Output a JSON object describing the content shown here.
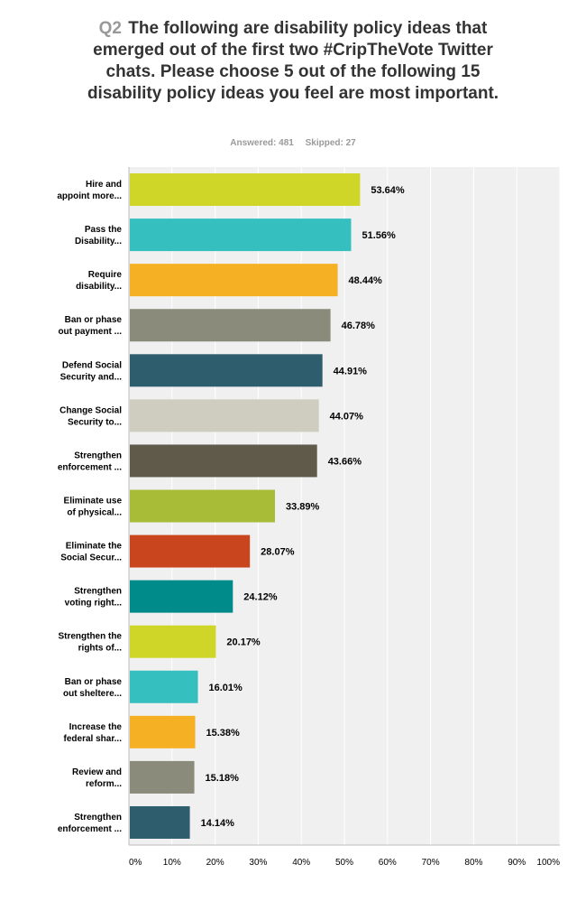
{
  "header": {
    "question_number": "Q2",
    "question_text": "The following are disability policy ideas that emerged out of the first two #CripTheVote Twitter chats. Please choose 5 out of the following 15 disability policy ideas you feel are most important.",
    "answered": "Answered: 481",
    "skipped": "Skipped: 27"
  },
  "chart_data": {
    "type": "bar",
    "orientation": "horizontal",
    "categories": [
      [
        "Hire and",
        "appoint more..."
      ],
      [
        "Pass the",
        "Disability..."
      ],
      [
        "Require",
        "disability..."
      ],
      [
        "Ban or phase",
        "out payment ..."
      ],
      [
        "Defend Social",
        "Security and..."
      ],
      [
        "Change Social",
        "Security to..."
      ],
      [
        "Strengthen",
        "enforcement ..."
      ],
      [
        "Eliminate use",
        "of physical..."
      ],
      [
        "Eliminate the",
        "Social Secur..."
      ],
      [
        "Strengthen",
        "voting right..."
      ],
      [
        "Strengthen the",
        "rights of..."
      ],
      [
        "Ban or phase",
        "out sheltere..."
      ],
      [
        "Increase the",
        "federal shar..."
      ],
      [
        "Review and",
        "reform..."
      ],
      [
        "Strengthen",
        "enforcement ..."
      ]
    ],
    "values": [
      53.64,
      51.56,
      48.44,
      46.78,
      44.91,
      44.07,
      43.66,
      33.89,
      28.07,
      24.12,
      20.17,
      16.01,
      15.38,
      15.18,
      14.14
    ],
    "value_labels": [
      "53.64%",
      "51.56%",
      "48.44%",
      "46.78%",
      "44.91%",
      "44.07%",
      "43.66%",
      "33.89%",
      "28.07%",
      "24.12%",
      "20.17%",
      "16.01%",
      "15.38%",
      "15.18%",
      "14.14%"
    ],
    "colors": [
      "#cfd628",
      "#36bfbf",
      "#f6b023",
      "#8a8b7a",
      "#2e5e6d",
      "#cfcdbf",
      "#5f5a4a",
      "#a8bc37",
      "#c9451d",
      "#008b8b",
      "#cfd628",
      "#36bfbf",
      "#f6b023",
      "#8a8b7a",
      "#2e5e6d"
    ],
    "xlim": [
      0,
      100
    ],
    "xticks": [
      "0%",
      "10%",
      "20%",
      "30%",
      "40%",
      "50%",
      "60%",
      "70%",
      "80%",
      "90%",
      "100%"
    ],
    "grid": true,
    "plot_background": "#f0f0f0",
    "grid_color": "#ffffff"
  }
}
